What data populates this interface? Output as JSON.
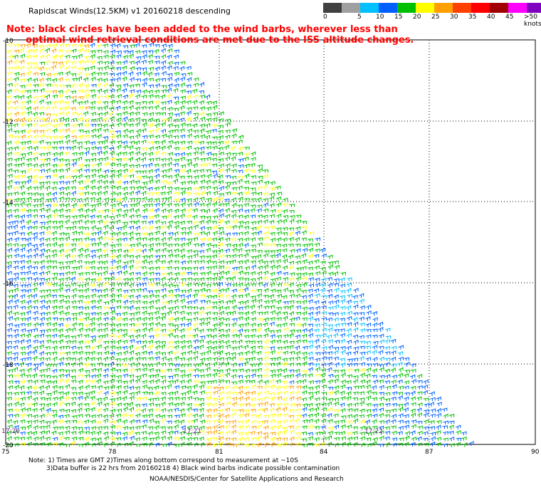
{
  "header": {
    "title": "Rapidscat Winds(12.5KM) v1 20160218 descending",
    "note_line1": "Note: black circles have been added to the wind barbs, wherever less than",
    "note_line2": "optimal wind retrieval conditions are met due to the ISS altitude changes."
  },
  "color_scale": {
    "labels": [
      "0",
      "5",
      "10",
      "15",
      "20",
      "25",
      "30",
      "35",
      "40",
      "45",
      ">50 knots"
    ],
    "colors": [
      "#404040",
      "#a0a0a0",
      "#00c0ff",
      "#0060ff",
      "#00c000",
      "#ffff00",
      "#ffa000",
      "#ff4000",
      "#ff0000",
      "#a00000",
      "#ff00ff",
      "#8000c0"
    ]
  },
  "map": {
    "lat_labels": [
      "-10",
      "-12",
      "-14",
      "-16",
      "-18",
      "-20"
    ],
    "lon_labels": [
      "75",
      "78",
      "81",
      "84",
      "87",
      "90"
    ],
    "time_labels": [
      "17:20",
      "17:21",
      "17:22"
    ]
  },
  "footer": {
    "note_line1": "Note: 1) Times are GMT 2)Times along bottom correspond to measurement at ~10S",
    "note_line2": "3)Data buffer is 22 hrs from 20160218 4) Black wind barbs indicate possible contamination",
    "credit": "NOAA/NESDIS/Center for Satellite Applications and Research"
  }
}
